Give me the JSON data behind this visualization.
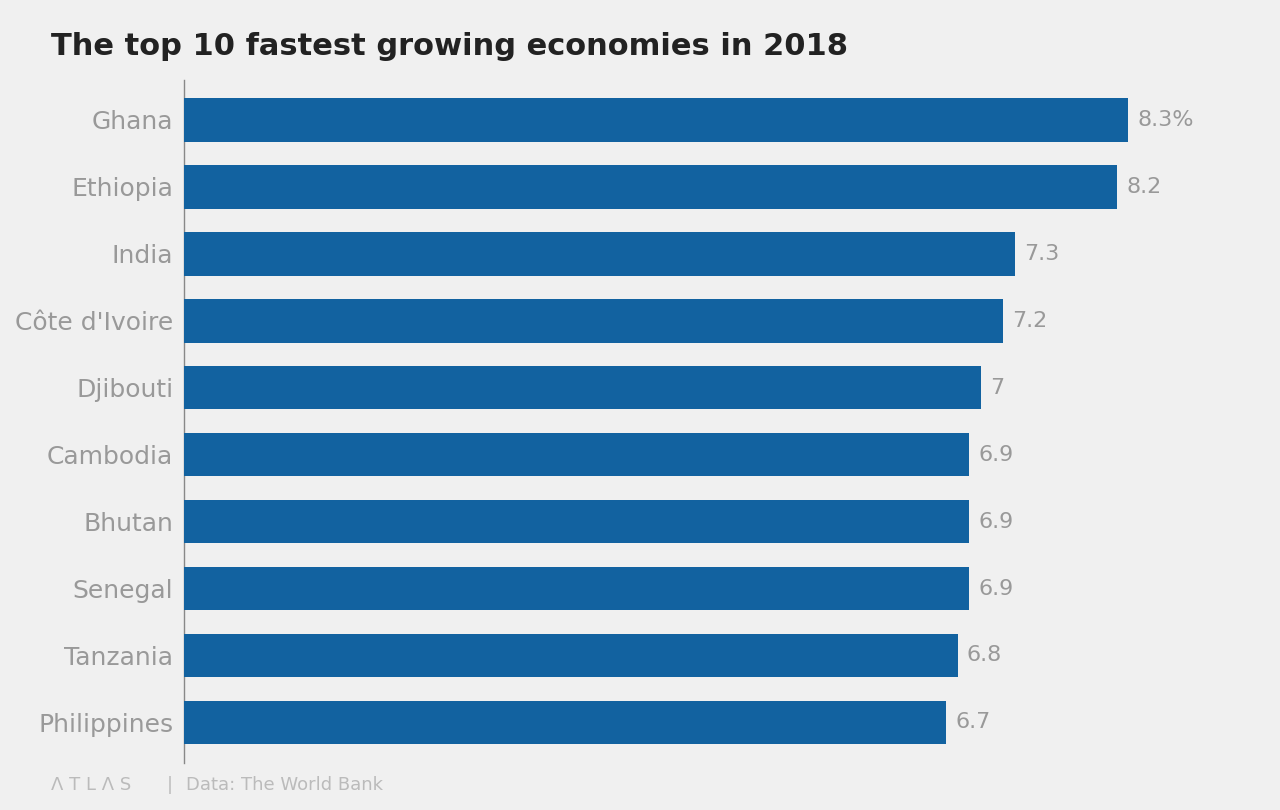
{
  "title": "The top 10 fastest growing economies in 2018",
  "categories": [
    "Ghana",
    "Ethiopia",
    "India",
    "Côte d'Ivoire",
    "Djibouti",
    "Cambodia",
    "Bhutan",
    "Senegal",
    "Tanzania",
    "Philippines"
  ],
  "values": [
    8.3,
    8.2,
    7.3,
    7.2,
    7.0,
    6.9,
    6.9,
    6.9,
    6.8,
    6.7
  ],
  "labels": [
    "8.3%",
    "8.2",
    "7.3",
    "7.2",
    "7",
    "6.9",
    "6.9",
    "6.9",
    "6.8",
    "6.7"
  ],
  "bar_color": "#1262A0",
  "background_color": "#F0F0F0",
  "title_color": "#222222",
  "subtitle_color": "#1262A0",
  "label_color": "#999999",
  "category_color": "#999999",
  "footer_color": "#BBBBBB",
  "footer_text": "Data: The World Bank",
  "atlas_text": "Λ T L Λ S",
  "xlim": [
    0,
    9.5
  ],
  "bar_height": 0.65
}
